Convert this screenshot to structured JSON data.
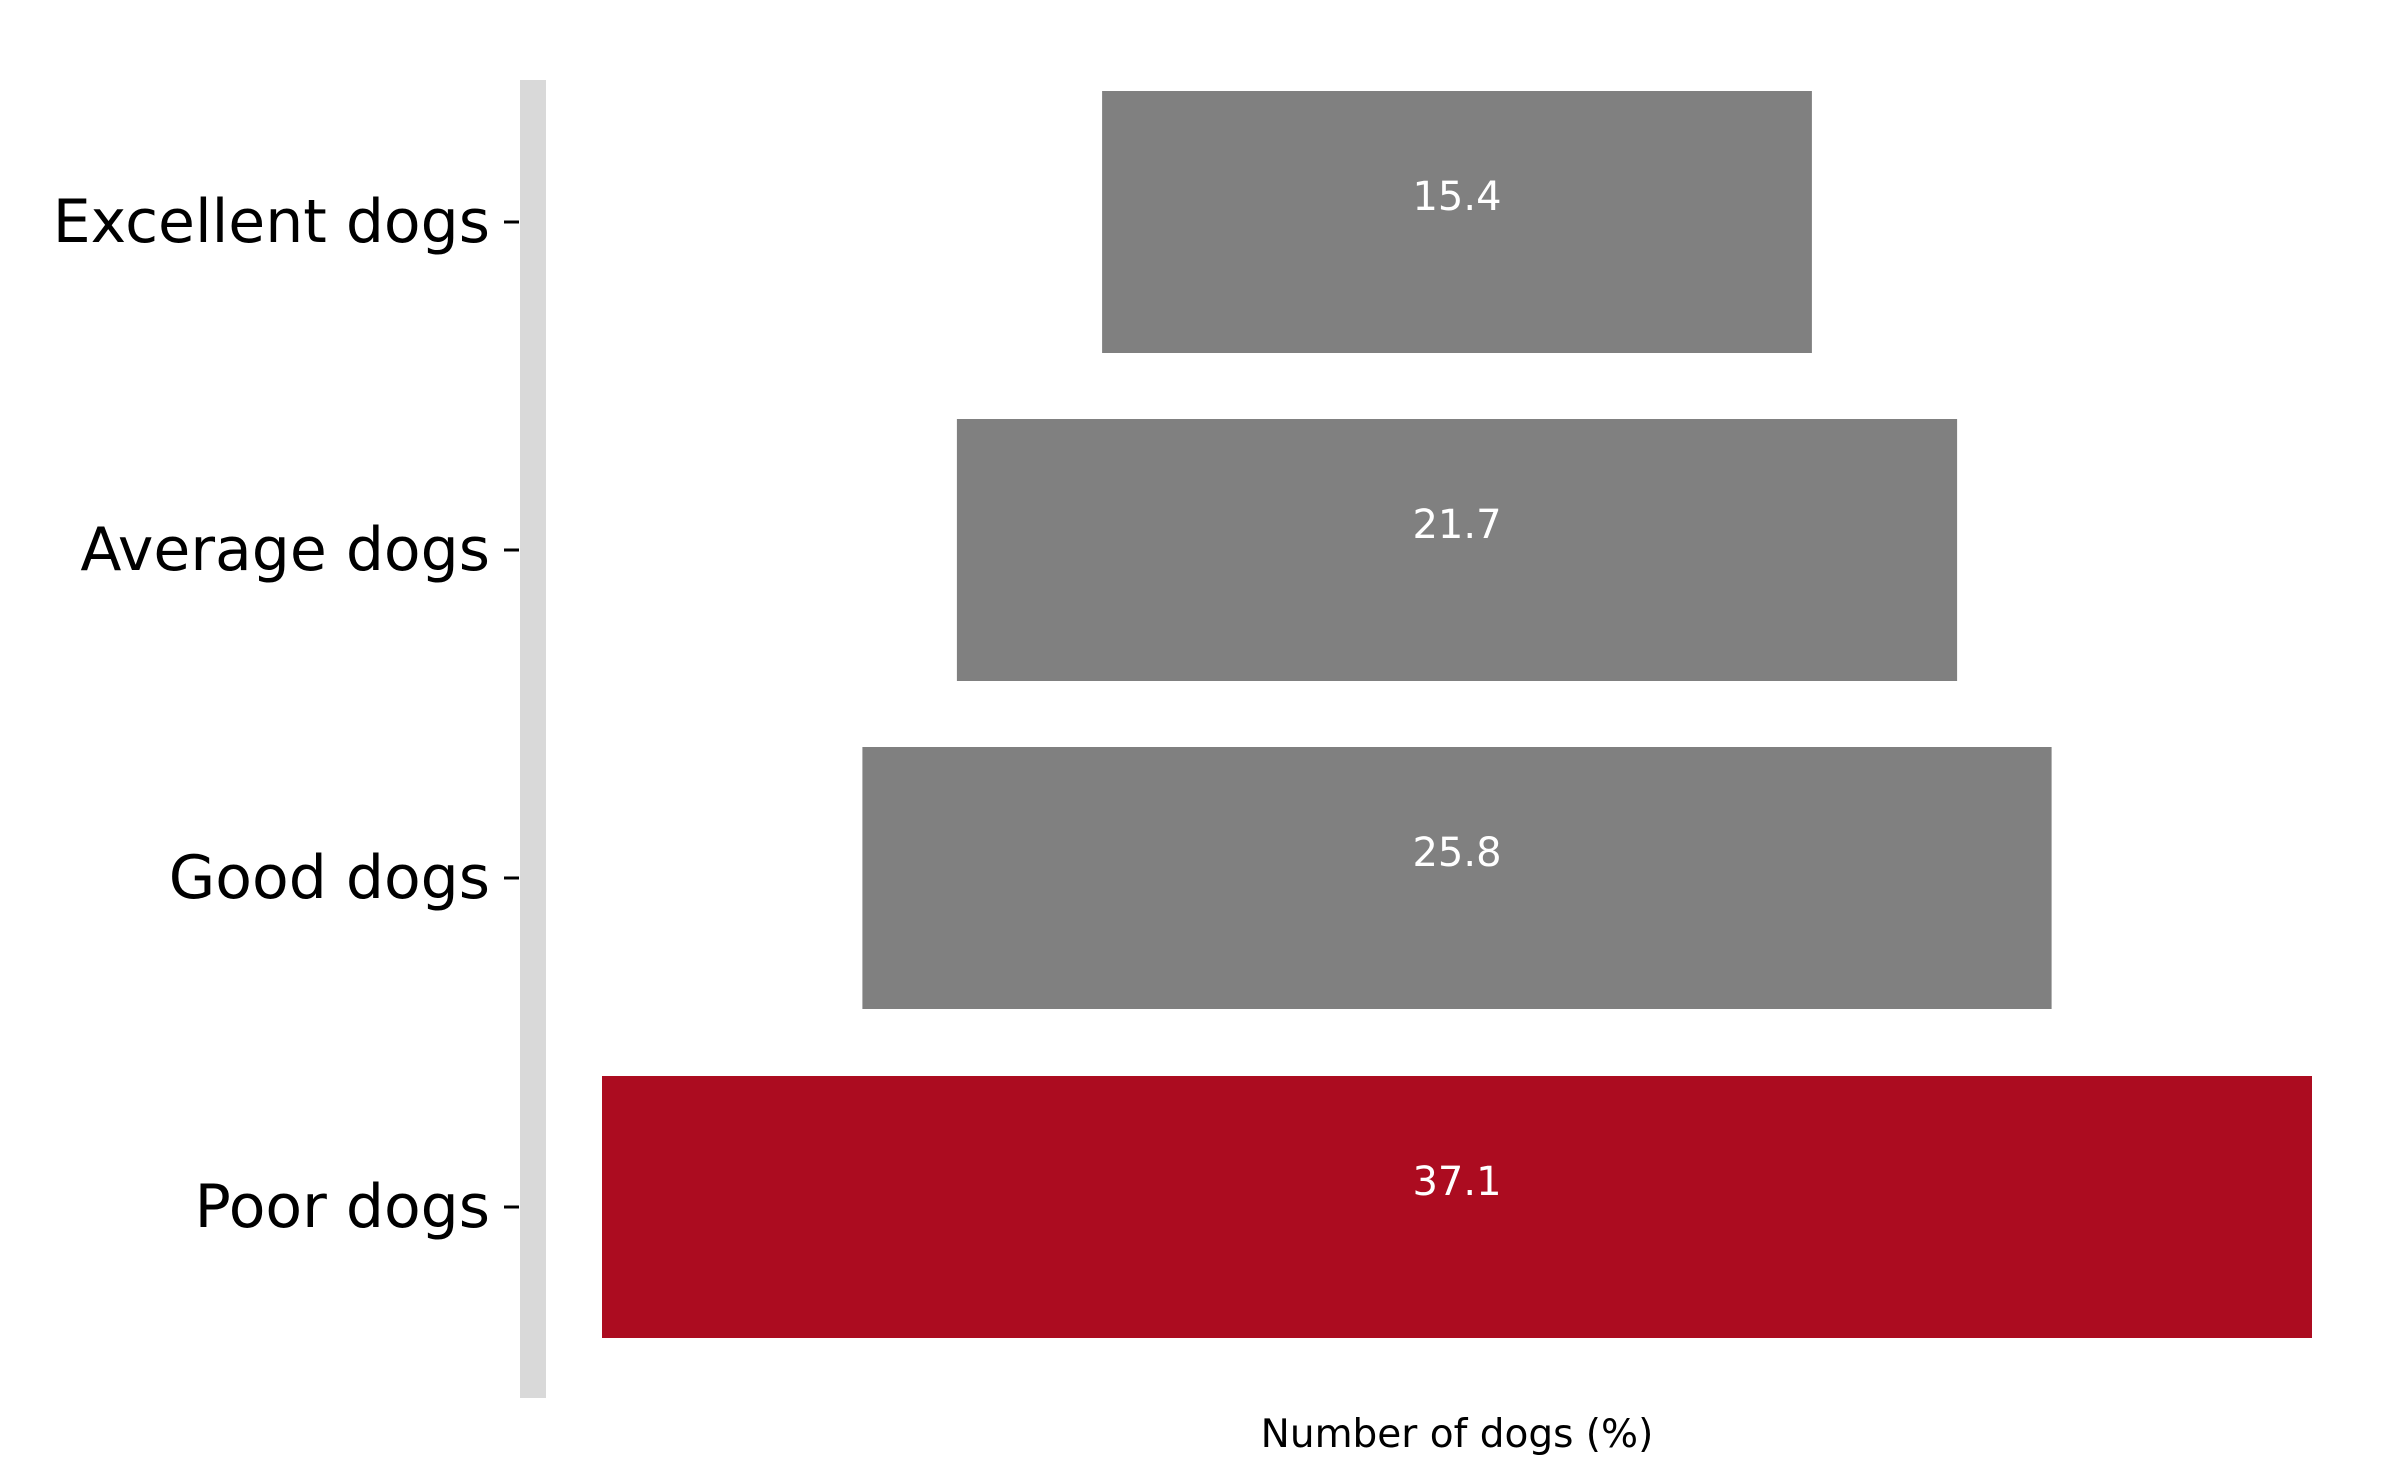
{
  "chart_data": {
    "type": "bar",
    "orientation": "horizontal-funnel",
    "categories": [
      "Excellent dogs",
      "Average dogs",
      "Good dogs",
      "Poor dogs"
    ],
    "values": [
      15.4,
      21.7,
      25.8,
      37.1
    ],
    "value_labels": [
      "15.4",
      "21.7",
      "25.8",
      "37.1"
    ],
    "xlabel": "Number of dogs (%)",
    "ylabel": "",
    "xlim": [
      -18.55,
      18.55
    ],
    "grid": false,
    "colors": {
      "default_bar": "#808080",
      "highlight_bar": "#ac0c20",
      "spine": "#d9d9d9"
    },
    "highlight_category": "Poor dogs"
  }
}
